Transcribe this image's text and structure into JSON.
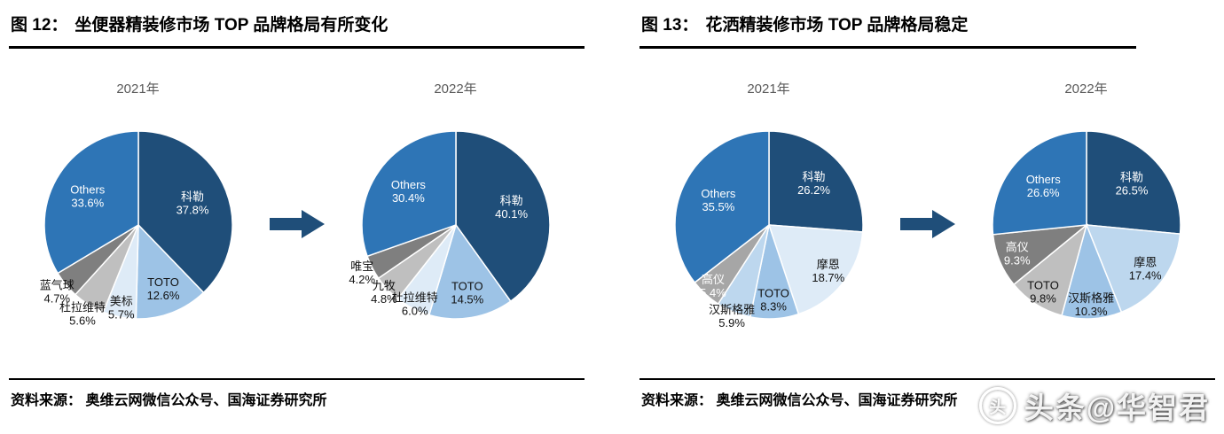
{
  "colors": {
    "arrow_accent": "#1F4E79",
    "others_blue": "#2E75B6",
    "title_rule": "#000000",
    "year_label_gray": "#595959"
  },
  "watermark": {
    "text": "头条@华智君"
  },
  "chart_data": [
    {
      "type": "pie",
      "figure_label": "图 12：",
      "title": "坐便器精装修市场 TOP 品牌格局有所变化",
      "source": "资料来源：  奥维云网微信公众号、国海证券研究所",
      "unit": "%",
      "legend": "none",
      "pies": [
        {
          "year": "2021年",
          "slices": [
            {
              "name": "科勒",
              "value": 37.8,
              "display": "37.8%",
              "color": "#1F4E79",
              "label_r": 0.62,
              "label_color": "#FFFFFF"
            },
            {
              "name": "TOTO",
              "value": 12.6,
              "display": "12.6%",
              "color": "#9DC3E6",
              "label_r": 0.73,
              "label_color": "#111111"
            },
            {
              "name": "美标",
              "value": 5.7,
              "display": "5.7%",
              "color": "#DEEBF7",
              "label_r": 0.9,
              "label_color": "#111111"
            },
            {
              "name": "杜拉维特",
              "value": 5.6,
              "display": "5.6%",
              "color": "#BFBFBF",
              "label_r": 1.12,
              "label_color": "#111111"
            },
            {
              "name": "蓝气球",
              "value": 4.7,
              "display": "4.7%",
              "color": "#7F7F7F",
              "label_r": 1.12,
              "label_color": "#111111"
            },
            {
              "name": "Others",
              "value": 33.6,
              "display": "33.6%",
              "color": "#2E75B6",
              "label_r": 0.62,
              "label_color": "#FFFFFF"
            }
          ]
        },
        {
          "year": "2022年",
          "slices": [
            {
              "name": "科勒",
              "value": 40.1,
              "display": "40.1%",
              "color": "#1F4E79",
              "label_r": 0.62,
              "label_color": "#FFFFFF"
            },
            {
              "name": "TOTO",
              "value": 14.5,
              "display": "14.5%",
              "color": "#9DC3E6",
              "label_r": 0.73,
              "label_color": "#111111"
            },
            {
              "name": "杜拉维特",
              "value": 6.0,
              "display": "6.0%",
              "color": "#DEEBF7",
              "label_r": 0.95,
              "label_color": "#111111"
            },
            {
              "name": "九牧",
              "value": 4.8,
              "display": "4.8%",
              "color": "#BFBFBF",
              "label_r": 1.05,
              "label_color": "#111111"
            },
            {
              "name": "唯宝",
              "value": 4.2,
              "display": "4.2%",
              "color": "#7F7F7F",
              "label_r": 1.12,
              "label_color": "#111111"
            },
            {
              "name": "Others",
              "value": 30.4,
              "display": "30.4%",
              "color": "#2E75B6",
              "label_r": 0.62,
              "label_color": "#FFFFFF"
            }
          ]
        }
      ]
    },
    {
      "type": "pie",
      "figure_label": "图 13：",
      "title": "花洒精装修市场 TOP 品牌格局稳定",
      "source": "资料来源：  奥维云网微信公众号、国海证券研究所",
      "unit": "%",
      "legend": "none",
      "pies": [
        {
          "year": "2021年",
          "slices": [
            {
              "name": "科勒",
              "value": 26.2,
              "display": "26.2%",
              "color": "#1F4E79",
              "label_r": 0.65,
              "label_color": "#FFFFFF"
            },
            {
              "name": "摩恩",
              "value": 18.7,
              "display": "18.7%",
              "color": "#DEEBF7",
              "label_r": 0.8,
              "label_color": "#111111"
            },
            {
              "name": "TOTO",
              "value": 8.3,
              "display": "8.3%",
              "color": "#9DC3E6",
              "label_r": 0.8,
              "label_color": "#111111"
            },
            {
              "name": "汉斯格雅",
              "value": 5.9,
              "display": "5.9%",
              "color": "#BDD7EE",
              "label_r": 1.05,
              "label_color": "#111111"
            },
            {
              "name": "高仪",
              "value": 5.4,
              "display": "5.4%",
              "color": "#A6A6A6",
              "label_r": 0.88,
              "label_color": "#FFFFFF"
            },
            {
              "name": "Others",
              "value": 35.5,
              "display": "35.5%",
              "color": "#2E75B6",
              "label_r": 0.6,
              "label_color": "#FFFFFF"
            }
          ]
        },
        {
          "year": "2022年",
          "slices": [
            {
              "name": "科勒",
              "value": 26.5,
              "display": "26.5%",
              "color": "#1F4E79",
              "label_r": 0.65,
              "label_color": "#FFFFFF"
            },
            {
              "name": "摩恩",
              "value": 17.4,
              "display": "17.4%",
              "color": "#BDD7EE",
              "label_r": 0.78,
              "label_color": "#111111"
            },
            {
              "name": "汉斯格雅",
              "value": 10.3,
              "display": "10.3%",
              "color": "#9DC3E6",
              "label_r": 0.85,
              "label_color": "#111111"
            },
            {
              "name": "TOTO",
              "value": 9.8,
              "display": "9.8%",
              "color": "#BFBFBF",
              "label_r": 0.85,
              "label_color": "#111111"
            },
            {
              "name": "高仪",
              "value": 9.3,
              "display": "9.3%",
              "color": "#7F7F7F",
              "label_r": 0.8,
              "label_color": "#FFFFFF"
            },
            {
              "name": "Others",
              "value": 26.6,
              "display": "26.6%",
              "color": "#2E75B6",
              "label_r": 0.62,
              "label_color": "#FFFFFF"
            }
          ]
        }
      ]
    }
  ]
}
